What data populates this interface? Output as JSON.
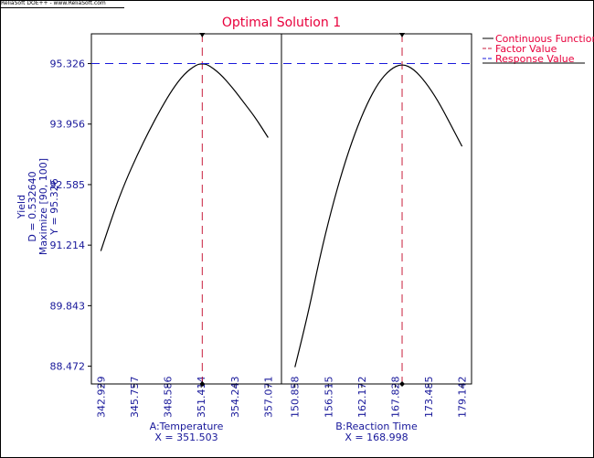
{
  "header": {
    "credit": "ReliaSoft DOE++ - www.ReliaSoft.com"
  },
  "chart_data": {
    "type": "line",
    "title": "Optimal Solution 1",
    "colors": {
      "title": "#e8003c",
      "axis_text": "#17179a",
      "curve": "#000000",
      "factor_line": "#c81e3c",
      "response_line": "#1a1adb"
    },
    "legend": {
      "placement": "right",
      "items": [
        {
          "label": "Continuous Function",
          "color": "#000000",
          "style": "solid"
        },
        {
          "label": "Factor Value",
          "color": "#c81e3c",
          "style": "dashed"
        },
        {
          "label": "Response Value",
          "color": "#1a1adb",
          "style": "dashed"
        }
      ]
    },
    "y_axis": {
      "label_lines": [
        "Yield",
        "D = 0.532640",
        "Maximize [90, 100]",
        "Y = 95.326"
      ],
      "ticks": [
        "95.326",
        "93.956",
        "92.585",
        "91.214",
        "89.843",
        "88.472"
      ],
      "tick_values": [
        95.326,
        93.956,
        92.585,
        91.214,
        89.843,
        88.472
      ],
      "ylim": [
        88.07,
        96.0
      ]
    },
    "response_value": 95.326,
    "panels": [
      {
        "factor": "A:Temperature",
        "x_value_text": "X = 351.503",
        "x_value": 351.503,
        "xlim": [
          342.13,
          358.2
        ],
        "ticks": [
          "342.929",
          "345.757",
          "348.586",
          "351.414",
          "354.243",
          "357.071"
        ],
        "tick_values": [
          342.929,
          345.757,
          348.586,
          351.414,
          354.243,
          357.071
        ],
        "curve": {
          "x": [
            342.929,
            344.0,
            345.0,
            346.0,
            347.0,
            348.0,
            349.0,
            350.0,
            351.0,
            351.503,
            352.0,
            353.0,
            354.0,
            355.0,
            356.0,
            357.071
          ],
          "y": [
            91.08,
            91.95,
            92.65,
            93.25,
            93.8,
            94.3,
            94.75,
            95.1,
            95.3,
            95.326,
            95.3,
            95.1,
            94.8,
            94.45,
            94.1,
            93.65
          ]
        }
      },
      {
        "factor": "B:Reaction Time",
        "x_value_text": "X = 168.998",
        "x_value": 168.998,
        "xlim": [
          148.58,
          180.75
        ],
        "ticks": [
          "150.858",
          "156.515",
          "162.172",
          "167.828",
          "173.485",
          "179.142"
        ],
        "tick_values": [
          150.858,
          156.515,
          162.172,
          167.828,
          173.485,
          179.142
        ],
        "curve": {
          "x": [
            150.858,
            153.0,
            155.0,
            157.0,
            159.0,
            161.0,
            163.0,
            165.0,
            167.0,
            168.998,
            171.0,
            173.0,
            175.0,
            177.0,
            179.142
          ],
          "y": [
            88.45,
            89.6,
            90.9,
            92.0,
            92.95,
            93.75,
            94.4,
            94.9,
            95.2,
            95.326,
            95.2,
            94.9,
            94.5,
            94.0,
            93.45
          ]
        }
      }
    ]
  }
}
